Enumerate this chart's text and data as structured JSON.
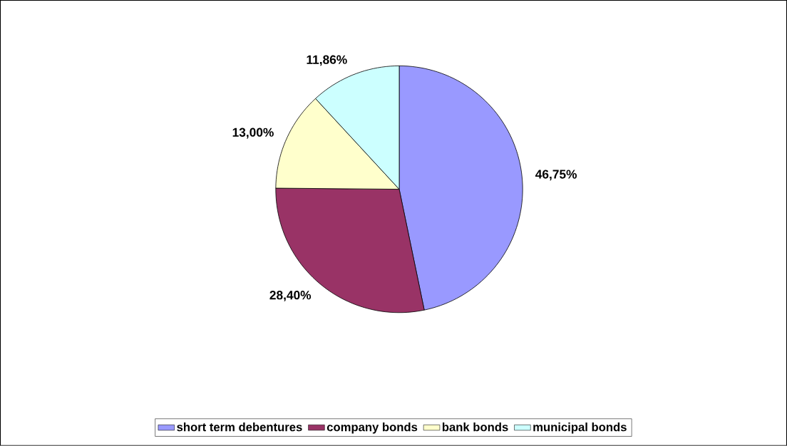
{
  "chart_data": {
    "type": "pie",
    "categories": [
      "short term debentures",
      "company bonds",
      "bank bonds",
      "municipal bonds"
    ],
    "values": [
      46.75,
      28.4,
      13.0,
      11.86
    ],
    "colors": [
      "#9999ff",
      "#993366",
      "#ffffcc",
      "#ccffff"
    ],
    "value_labels": [
      "46,75%",
      "28,40%",
      "13,00%",
      "11,86%"
    ],
    "legend": "bottom"
  }
}
